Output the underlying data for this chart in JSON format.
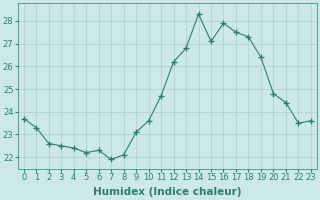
{
  "x": [
    0,
    1,
    2,
    3,
    4,
    5,
    6,
    7,
    8,
    9,
    10,
    11,
    12,
    13,
    14,
    15,
    16,
    17,
    18,
    19,
    20,
    21,
    22,
    23
  ],
  "y": [
    23.7,
    23.3,
    22.6,
    22.5,
    22.4,
    22.2,
    22.3,
    21.9,
    22.1,
    23.1,
    23.6,
    24.7,
    26.2,
    26.8,
    28.3,
    27.1,
    27.9,
    27.5,
    27.3,
    26.4,
    24.8,
    24.4,
    23.5,
    23.6
  ],
  "line_color": "#2e7d6e",
  "marker": "+",
  "marker_size": 4,
  "bg_color": "#cce8e8",
  "grid_color": "#b0cccc",
  "xlabel": "Humidex (Indice chaleur)",
  "ylim": [
    21.5,
    28.8
  ],
  "yticks": [
    22,
    23,
    24,
    25,
    26,
    27,
    28
  ],
  "xticks": [
    0,
    1,
    2,
    3,
    4,
    5,
    6,
    7,
    8,
    9,
    10,
    11,
    12,
    13,
    14,
    15,
    16,
    17,
    18,
    19,
    20,
    21,
    22,
    23
  ],
  "tick_fontsize": 6,
  "label_fontsize": 7.5
}
